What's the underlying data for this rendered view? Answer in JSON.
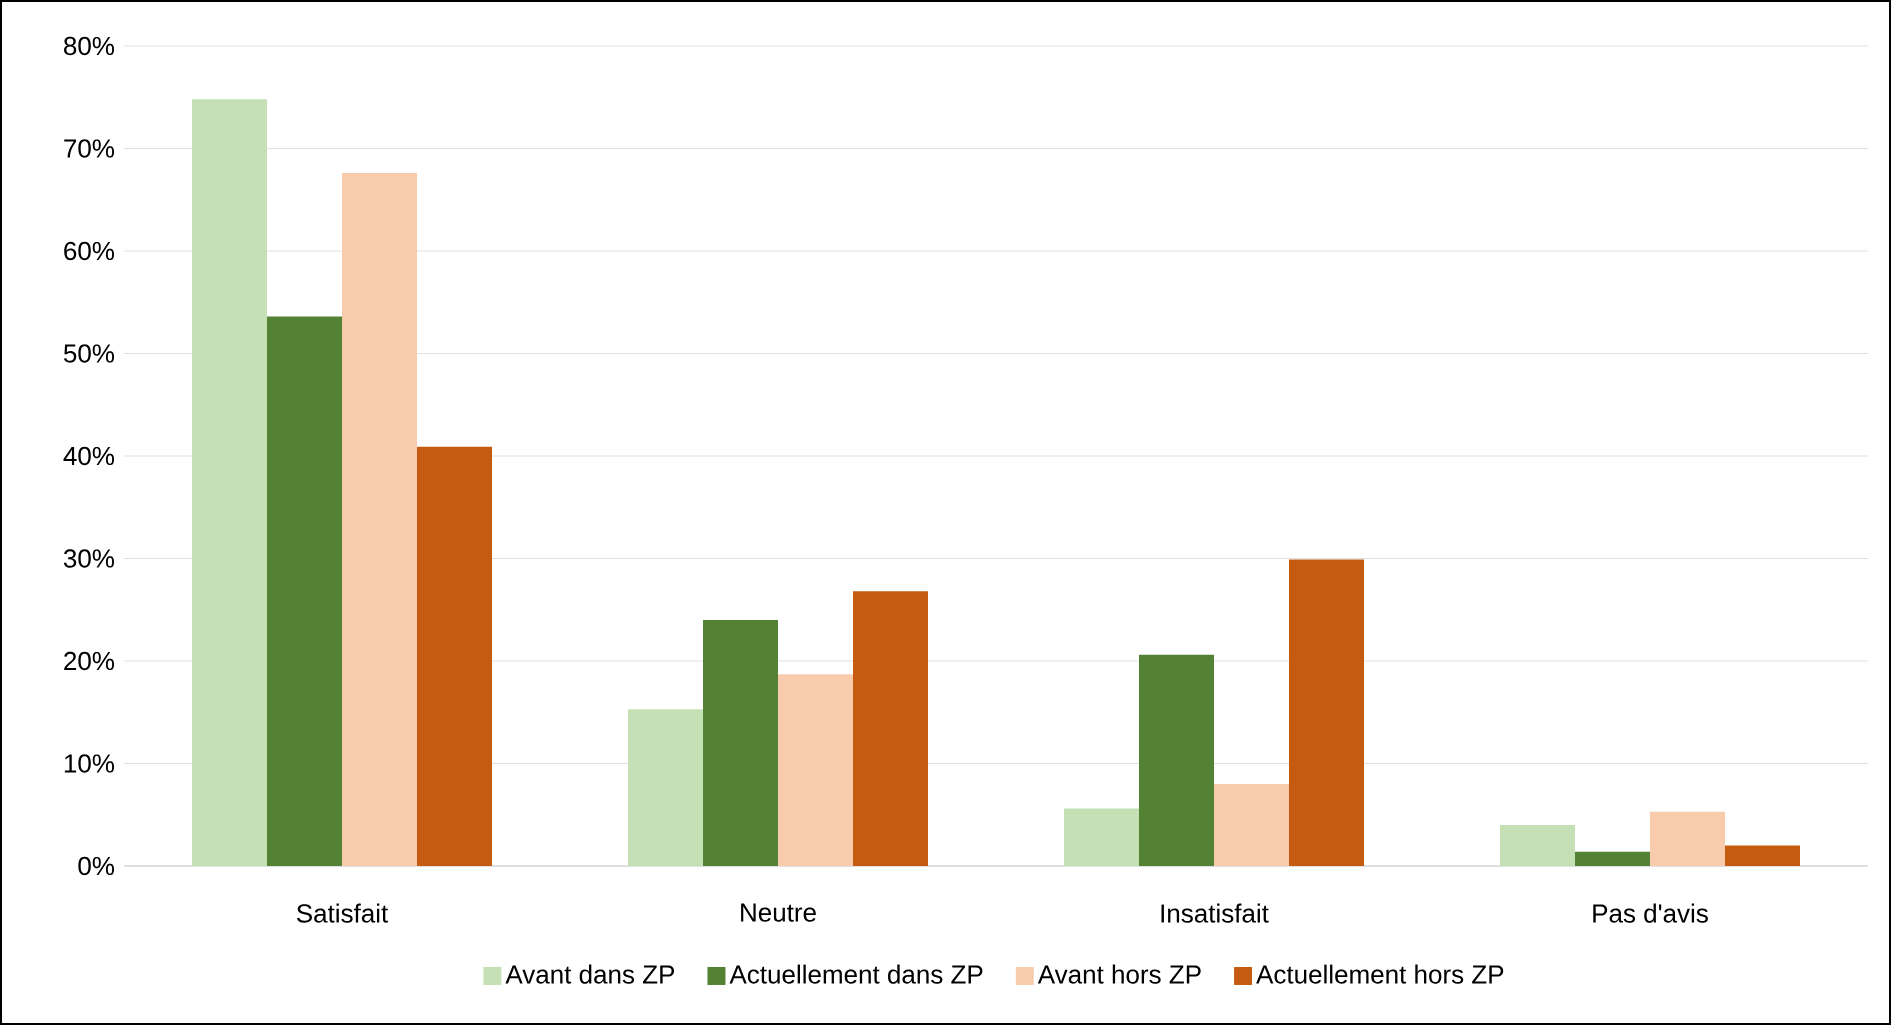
{
  "chart_data": {
    "type": "bar",
    "categories": [
      "Satisfait",
      "Neutre",
      "Insatisfait",
      "Pas d'avis"
    ],
    "series": [
      {
        "name": "Avant dans ZP",
        "color": "#c5e0b4",
        "values": [
          74.8,
          15.3,
          5.6,
          4.0
        ]
      },
      {
        "name": "Actuellement dans ZP",
        "color": "#548235",
        "values": [
          53.6,
          24.0,
          20.6,
          1.4
        ]
      },
      {
        "name": "Avant hors ZP",
        "color": "#f8cbad",
        "values": [
          67.6,
          18.7,
          8.0,
          5.3
        ]
      },
      {
        "name": "Actuellement hors ZP",
        "color": "#c55a11",
        "values": [
          40.9,
          26.8,
          29.9,
          2.0
        ]
      }
    ],
    "ylim": [
      0,
      80
    ],
    "yticks": [
      {
        "value": 0,
        "label": "0%"
      },
      {
        "value": 10,
        "label": "10%"
      },
      {
        "value": 20,
        "label": "20%"
      },
      {
        "value": 30,
        "label": "30%"
      },
      {
        "value": 40,
        "label": "40%"
      },
      {
        "value": 50,
        "label": "50%"
      },
      {
        "value": 60,
        "label": "60%"
      },
      {
        "value": 70,
        "label": "70%"
      },
      {
        "value": 80,
        "label": "80%"
      }
    ],
    "grid": "y",
    "legend": "bottom"
  }
}
